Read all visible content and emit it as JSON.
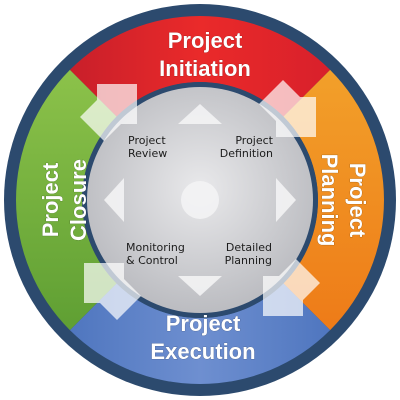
{
  "phases": {
    "initiation": {
      "line1": "Project",
      "line2": "Initiation",
      "color": "#e02a2a"
    },
    "planning": {
      "line1": "Project",
      "line2": "Planning",
      "color": "#f08a1c"
    },
    "execution": {
      "line1": "Project",
      "line2": "Execution",
      "color": "#5b7fc4"
    },
    "closure": {
      "line1": "Project",
      "line2": "Closure",
      "color": "#6fae3c"
    }
  },
  "center": {
    "top_left": {
      "line1": "Project",
      "line2": "Review"
    },
    "top_right": {
      "line1": "Project",
      "line2": "Definition"
    },
    "bottom_left": {
      "line1": "Monitoring",
      "line2": "& Control"
    },
    "bottom_right": {
      "line1": "Detailed",
      "line2": "Planning"
    }
  },
  "colors": {
    "outer_ring": "#2c4a6e",
    "center_disc": "#cfcfd2",
    "inner_ring": "#b9bcc4"
  }
}
